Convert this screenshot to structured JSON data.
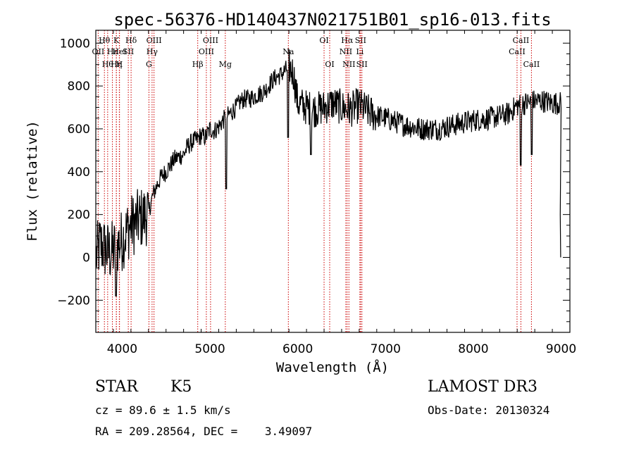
{
  "chart_data": {
    "type": "line",
    "title": "spec-56376-HD140437N021751B01_sp16-013.fits",
    "xlabel": "Wavelength (Å)",
    "ylabel": "Flux (relative)",
    "xlim": [
      3700,
      9100
    ],
    "ylim": [
      -350,
      1060
    ],
    "xticks": [
      4000,
      5000,
      6000,
      7000,
      8000,
      9000
    ],
    "yticks": [
      -200,
      0,
      200,
      400,
      600,
      800,
      1000
    ],
    "grid": false,
    "series": [
      {
        "name": "spectrum",
        "x": [
          3700,
          3750,
          3800,
          3850,
          3900,
          3950,
          4000,
          4050,
          4100,
          4150,
          4200,
          4250,
          4300,
          4350,
          4400,
          4450,
          4500,
          4550,
          4600,
          4650,
          4700,
          4750,
          4800,
          4850,
          4900,
          4950,
          5000,
          5050,
          5100,
          5150,
          5200,
          5250,
          5300,
          5350,
          5400,
          5450,
          5500,
          5550,
          5600,
          5650,
          5700,
          5750,
          5800,
          5850,
          5900,
          5950,
          6000,
          6100,
          6200,
          6300,
          6400,
          6500,
          6600,
          6700,
          6800,
          6900,
          7000,
          7200,
          7400,
          7600,
          7800,
          8000,
          8200,
          8400,
          8500,
          8600,
          8700,
          8800,
          8900,
          9000
        ],
        "values": [
          0,
          60,
          40,
          20,
          30,
          60,
          80,
          120,
          150,
          160,
          180,
          190,
          210,
          290,
          340,
          380,
          400,
          430,
          460,
          470,
          480,
          520,
          540,
          550,
          570,
          560,
          600,
          590,
          610,
          640,
          660,
          680,
          700,
          730,
          740,
          740,
          750,
          760,
          770,
          790,
          820,
          840,
          850,
          870,
          890,
          860,
          720,
          700,
          690,
          700,
          720,
          700,
          690,
          710,
          680,
          660,
          650,
          620,
          600,
          600,
          620,
          640,
          650,
          670,
          710,
          720,
          730,
          730,
          720,
          720
        ]
      }
    ],
    "lines": [
      {
        "label": "OII",
        "x": 3727,
        "row": 2
      },
      {
        "label": "Hθ",
        "x": 3798,
        "row": 1
      },
      {
        "label": "Hθ",
        "x": 3835,
        "row": 3
      },
      {
        "label": "Hε",
        "x": 3889,
        "row": 2
      },
      {
        "label": "K",
        "x": 3934,
        "row": 1
      },
      {
        "label": "Hη",
        "x": 3934,
        "row": 3
      },
      {
        "label": "HeI",
        "x": 3970,
        "row": 2
      },
      {
        "label": "H",
        "x": 3968,
        "row": 3
      },
      {
        "label": "SII",
        "x": 4070,
        "row": 2
      },
      {
        "label": "Hδ",
        "x": 4102,
        "row": 1
      },
      {
        "label": "OIII",
        "x": 4363,
        "row": 1
      },
      {
        "label": "Hγ",
        "x": 4341,
        "row": 2
      },
      {
        "label": "G",
        "x": 4305,
        "row": 3
      },
      {
        "label": "Hβ",
        "x": 4861,
        "row": 3
      },
      {
        "label": "OIII",
        "x": 4959,
        "row": 2
      },
      {
        "label": "OIII",
        "x": 5007,
        "row": 1
      },
      {
        "label": "Mg",
        "x": 5175,
        "row": 3
      },
      {
        "label": "Na",
        "x": 5893,
        "row": 2
      },
      {
        "label": "OI",
        "x": 6300,
        "row": 1
      },
      {
        "label": "OI",
        "x": 6364,
        "row": 3
      },
      {
        "label": "Hα",
        "x": 6563,
        "row": 1
      },
      {
        "label": "NII",
        "x": 6548,
        "row": 2
      },
      {
        "label": "NII",
        "x": 6583,
        "row": 3
      },
      {
        "label": "SII",
        "x": 6716,
        "row": 1
      },
      {
        "label": "Li",
        "x": 6708,
        "row": 2
      },
      {
        "label": "SII",
        "x": 6731,
        "row": 3
      },
      {
        "label": "CaII",
        "x": 8498,
        "row": 2
      },
      {
        "label": "CaII",
        "x": 8542,
        "row": 1
      },
      {
        "label": "CaII",
        "x": 8662,
        "row": 3
      }
    ]
  },
  "info": {
    "class": "STAR",
    "subclass": "K5",
    "survey": "LAMOST DR3",
    "cz": "cz = 89.6 ± 1.5 km/s",
    "obs_date": "Obs-Date: 20130324",
    "radec": "RA = 209.28564, DEC =    3.49097"
  },
  "colors": {
    "line": "#000000",
    "marker_lines": "#cc0000"
  }
}
